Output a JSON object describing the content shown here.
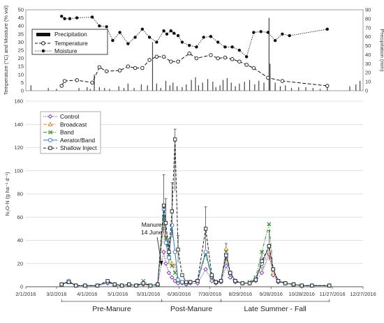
{
  "chart_data": [
    {
      "type": "line",
      "panel": "weather",
      "y_left_label": "Temperature (°C) and Moisture (% vol)",
      "y_right_label": "Precipitation (mm)",
      "y_left_ticks": [
        "0",
        "5",
        "10",
        "15",
        "20",
        "25",
        "30",
        "35",
        "40",
        "45",
        "50"
      ],
      "y_right_ticks": [
        "0",
        "10",
        "20",
        "30",
        "40",
        "50",
        "60",
        "70",
        "80",
        "90"
      ],
      "ylim_left": [
        0,
        50
      ],
      "ylim_right": [
        0,
        90
      ],
      "xlim": [
        "2016-02-01",
        "2016-12-27"
      ],
      "legend": {
        "position": "top-left",
        "entries": [
          {
            "label": "Precipitation",
            "style": "bar"
          },
          {
            "label": "Temperature",
            "style": "dashed-open-circle"
          },
          {
            "label": "Moisture",
            "style": "dotted-filled-circle"
          }
        ]
      },
      "series": [
        {
          "name": "Moisture",
          "x": [
            "2016-03-07",
            "2016-03-10",
            "2016-03-15",
            "2016-03-22",
            "2016-04-06",
            "2016-04-13",
            "2016-04-20",
            "2016-04-26",
            "2016-05-03",
            "2016-05-11",
            "2016-05-18",
            "2016-05-25",
            "2016-06-01",
            "2016-06-08",
            "2016-06-15",
            "2016-06-18",
            "2016-06-22",
            "2016-06-25",
            "2016-06-29",
            "2016-07-03",
            "2016-07-10",
            "2016-07-17",
            "2016-07-24",
            "2016-07-31",
            "2016-08-07",
            "2016-08-14",
            "2016-08-21",
            "2016-08-28",
            "2016-09-04",
            "2016-09-11",
            "2016-09-18",
            "2016-09-25",
            "2016-10-02",
            "2016-10-09",
            "2016-10-16",
            "2016-11-22"
          ],
          "values": [
            46,
            44.5,
            44.5,
            45,
            45.5,
            40,
            39.5,
            31,
            36,
            29,
            33,
            38,
            33,
            30,
            37,
            35,
            37,
            35.5,
            34,
            30,
            28,
            27,
            33,
            33.5,
            30,
            27,
            27,
            25,
            21,
            36,
            36.5,
            36,
            31,
            35,
            34,
            38
          ]
        },
        {
          "name": "Temperature",
          "x": [
            "2016-03-07",
            "2016-03-10",
            "2016-03-22",
            "2016-04-06",
            "2016-04-13",
            "2016-04-20",
            "2016-05-03",
            "2016-05-11",
            "2016-05-18",
            "2016-05-25",
            "2016-06-01",
            "2016-06-08",
            "2016-06-15",
            "2016-06-22",
            "2016-06-29",
            "2016-07-10",
            "2016-07-17",
            "2016-07-31",
            "2016-08-07",
            "2016-08-14",
            "2016-08-21",
            "2016-08-28",
            "2016-09-04",
            "2016-09-11",
            "2016-09-25",
            "2016-10-09",
            "2016-11-22"
          ],
          "values": [
            3,
            6,
            6.5,
            5,
            14.5,
            12,
            12.5,
            15,
            14,
            14,
            19,
            21,
            21,
            18,
            18,
            23,
            20,
            22,
            20,
            20.5,
            19.5,
            18,
            16,
            14,
            8,
            6,
            3
          ]
        },
        {
          "name": "Precipitation",
          "unit": "mm",
          "x": [
            "2016-02-06",
            "2016-02-23",
            "2016-03-02",
            "2016-03-24",
            "2016-04-01",
            "2016-04-04",
            "2016-04-08",
            "2016-04-13",
            "2016-04-18",
            "2016-04-23",
            "2016-05-02",
            "2016-05-07",
            "2016-05-11",
            "2016-05-17",
            "2016-05-24",
            "2016-05-30",
            "2016-06-04",
            "2016-06-08",
            "2016-06-12",
            "2016-06-17",
            "2016-06-21",
            "2016-06-24",
            "2016-06-28",
            "2016-07-03",
            "2016-07-07",
            "2016-07-12",
            "2016-07-16",
            "2016-07-19",
            "2016-07-23",
            "2016-07-28",
            "2016-08-02",
            "2016-08-05",
            "2016-08-09",
            "2016-08-12",
            "2016-08-16",
            "2016-08-20",
            "2016-08-24",
            "2016-08-28",
            "2016-09-02",
            "2016-09-07",
            "2016-09-12",
            "2016-09-16",
            "2016-09-21",
            "2016-09-26",
            "2016-09-27",
            "2016-10-02",
            "2016-10-07",
            "2016-10-12",
            "2016-10-18",
            "2016-10-25",
            "2016-11-01",
            "2016-11-08",
            "2016-11-15",
            "2016-11-22",
            "2016-12-14",
            "2016-12-20",
            "2016-12-24"
          ],
          "values": [
            6,
            3,
            2,
            3,
            4,
            2,
            18,
            4,
            3,
            2,
            5,
            3,
            8,
            3,
            7,
            6,
            54,
            8,
            3,
            11,
            6,
            9,
            5,
            4,
            7,
            12,
            15,
            6,
            9,
            13,
            10,
            4,
            6,
            12,
            14,
            9,
            5,
            8,
            10,
            12,
            7,
            11,
            9,
            81,
            30,
            9,
            5,
            6,
            3,
            4,
            4,
            3,
            2,
            6,
            5,
            7,
            11
          ]
        }
      ]
    },
    {
      "type": "line",
      "panel": "n2o-flux",
      "ylabel": "N₂O-N (g ha⁻¹ d⁻¹)",
      "ylim": [
        0,
        160
      ],
      "y_ticks": [
        "0",
        "20",
        "40",
        "60",
        "80",
        "100",
        "120",
        "140",
        "160"
      ],
      "xlim": [
        "2016-02-01",
        "2016-12-27"
      ],
      "x_ticks": [
        "2/1/2016",
        "3/2/2016",
        "4/1/2016",
        "5/1/2016",
        "5/31/2016",
        "6/30/2016",
        "7/30/2016",
        "8/29/2016",
        "9/28/2016",
        "10/28/2016",
        "11/27/2016",
        "12/27/2016"
      ],
      "periods": [
        {
          "label": "Pre-Manure",
          "start": "2016-03-07",
          "end": "2016-06-13"
        },
        {
          "label": "Post-Manure",
          "start": "2016-06-13",
          "end": "2016-08-10"
        },
        {
          "label": "Late Summer - Fall",
          "start": "2016-08-10",
          "end": "2016-11-24"
        }
      ],
      "annotation": {
        "line1": "Manure",
        "line2": "14 June",
        "x": "2016-06-14"
      },
      "legend": {
        "position": "top-left",
        "entries": [
          {
            "label": "Control",
            "color": "#7030a0",
            "marker": "diamond",
            "dash": "dot"
          },
          {
            "label": "Broadcast",
            "color": "#ed7d31",
            "marker": "triangle",
            "dash": "dash-dot"
          },
          {
            "label": "Band",
            "color": "#2e8b2e",
            "marker": "x",
            "dash": "dash-dot"
          },
          {
            "label": "Aerator/Band",
            "color": "#2e75b6",
            "marker": "circle",
            "dash": "solid"
          },
          {
            "label": "Shallow Inject",
            "color": "#222222",
            "marker": "square",
            "dash": "dash"
          }
        ]
      },
      "x": [
        "2016-03-07",
        "2016-03-14",
        "2016-03-21",
        "2016-03-30",
        "2016-04-11",
        "2016-04-21",
        "2016-04-28",
        "2016-05-05",
        "2016-05-12",
        "2016-05-19",
        "2016-05-26",
        "2016-06-02",
        "2016-06-09",
        "2016-06-15",
        "2016-06-17",
        "2016-06-20",
        "2016-06-23",
        "2016-06-26",
        "2016-06-29",
        "2016-07-03",
        "2016-07-07",
        "2016-07-11",
        "2016-07-18",
        "2016-07-26",
        "2016-08-01",
        "2016-08-05",
        "2016-08-10",
        "2016-08-15",
        "2016-08-19",
        "2016-08-24",
        "2016-08-31",
        "2016-09-07",
        "2016-09-13",
        "2016-09-19",
        "2016-09-26",
        "2016-09-30",
        "2016-10-05",
        "2016-10-12",
        "2016-10-20",
        "2016-10-28",
        "2016-11-07",
        "2016-11-24"
      ],
      "series": [
        {
          "name": "Control",
          "values": [
            2,
            4,
            1,
            1,
            1,
            3,
            2,
            1,
            2,
            1,
            2,
            1,
            2,
            30,
            20,
            12,
            8,
            5,
            3,
            3,
            2,
            3,
            3,
            15,
            5,
            3,
            4,
            18,
            8,
            4,
            3,
            3,
            5,
            12,
            28,
            10,
            4,
            3,
            2,
            1,
            1,
            1
          ]
        },
        {
          "name": "Broadcast",
          "values": [
            2,
            4,
            1,
            1,
            1,
            4,
            2,
            1,
            2,
            1,
            3,
            1,
            2,
            55,
            45,
            30,
            20,
            18,
            6,
            4,
            3,
            4,
            5,
            30,
            8,
            4,
            5,
            33,
            12,
            5,
            3,
            3,
            6,
            18,
            30,
            12,
            5,
            3,
            2,
            1,
            1,
            1
          ]
        },
        {
          "name": "Band",
          "values": [
            2,
            4,
            1,
            1,
            1,
            4,
            2,
            1,
            2,
            1,
            5,
            1,
            2,
            60,
            42,
            28,
            18,
            12,
            5,
            4,
            3,
            4,
            5,
            28,
            8,
            4,
            5,
            30,
            12,
            5,
            3,
            4,
            8,
            30,
            54,
            15,
            5,
            3,
            2,
            1,
            1,
            1
          ]
        },
        {
          "name": "Aerator/Band",
          "values": [
            2,
            5,
            1,
            1,
            1,
            4,
            2,
            1,
            2,
            1,
            3,
            1,
            2,
            67,
            38,
            25,
            53,
            30,
            6,
            4,
            3,
            4,
            5,
            30,
            9,
            4,
            5,
            28,
            12,
            5,
            3,
            3,
            7,
            20,
            35,
            15,
            5,
            3,
            2,
            1,
            1,
            1
          ]
        },
        {
          "name": "Shallow Inject",
          "values": [
            2,
            4,
            1,
            1,
            1,
            5,
            2,
            1,
            2,
            1,
            3,
            1,
            2,
            70,
            55,
            30,
            65,
            127,
            32,
            10,
            4,
            4,
            5,
            50,
            10,
            4,
            5,
            27,
            12,
            5,
            3,
            3,
            6,
            22,
            35,
            15,
            5,
            3,
            2,
            1,
            1,
            1
          ]
        }
      ]
    }
  ]
}
